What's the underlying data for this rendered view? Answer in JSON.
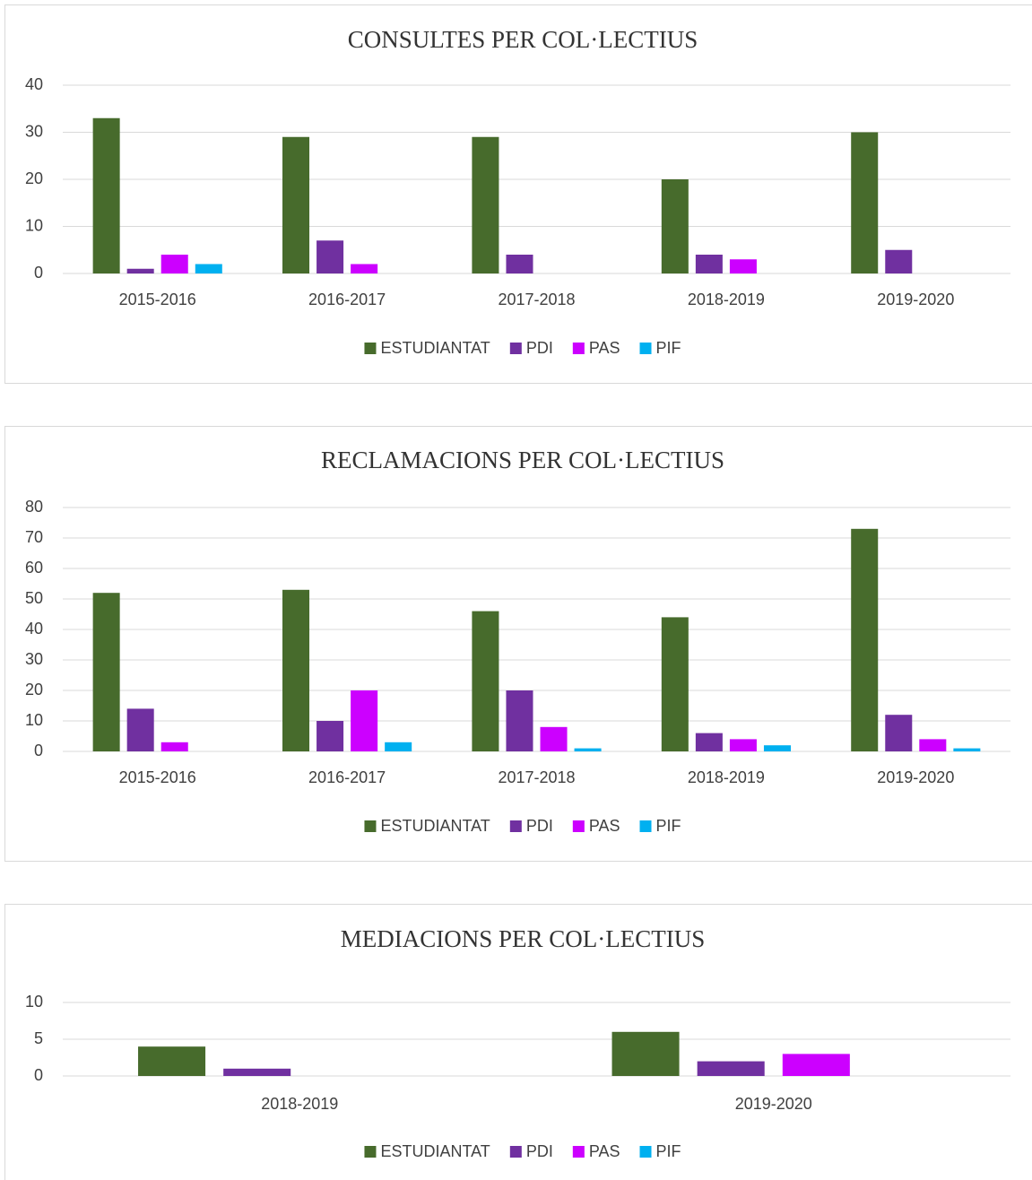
{
  "chart_data": [
    {
      "type": "bar",
      "title": "CONSULTES PER COL·LECTIUS",
      "categories": [
        "2015-2016",
        "2016-2017",
        "2017-2018",
        "2018-2019",
        "2019-2020"
      ],
      "series": [
        {
          "name": "ESTUDIANTAT",
          "color": "#476b2c",
          "values": [
            33,
            29,
            29,
            20,
            30
          ]
        },
        {
          "name": "PDI",
          "color": "#7030a0",
          "values": [
            1,
            7,
            4,
            4,
            5
          ]
        },
        {
          "name": "PAS",
          "color": "#cc00ff",
          "values": [
            4,
            2,
            0,
            3,
            0
          ]
        },
        {
          "name": "PIF",
          "color": "#00b0f0",
          "values": [
            2,
            0,
            0,
            0,
            0
          ]
        }
      ],
      "ylim": [
        0,
        40
      ],
      "yticks": [
        0,
        10,
        20,
        30,
        40
      ],
      "grid": true,
      "legend": "bottom"
    },
    {
      "type": "bar",
      "title": "RECLAMACIONS PER COL·LECTIUS",
      "categories": [
        "2015-2016",
        "2016-2017",
        "2017-2018",
        "2018-2019",
        "2019-2020"
      ],
      "series": [
        {
          "name": "ESTUDIANTAT",
          "color": "#476b2c",
          "values": [
            52,
            53,
            46,
            44,
            73
          ]
        },
        {
          "name": "PDI",
          "color": "#7030a0",
          "values": [
            14,
            10,
            20,
            6,
            12
          ]
        },
        {
          "name": "PAS",
          "color": "#cc00ff",
          "values": [
            3,
            20,
            8,
            4,
            4
          ]
        },
        {
          "name": "PIF",
          "color": "#00b0f0",
          "values": [
            0,
            3,
            1,
            2,
            1
          ]
        }
      ],
      "ylim": [
        0,
        80
      ],
      "yticks": [
        0,
        10,
        20,
        30,
        40,
        50,
        60,
        70,
        80
      ],
      "grid": true,
      "legend": "bottom"
    },
    {
      "type": "bar",
      "title": "MEDIACIONS PER COL·LECTIUS",
      "categories": [
        "2018-2019",
        "2019-2020"
      ],
      "series": [
        {
          "name": "ESTUDIANTAT",
          "color": "#476b2c",
          "values": [
            4,
            6
          ]
        },
        {
          "name": "PDI",
          "color": "#7030a0",
          "values": [
            1,
            2
          ]
        },
        {
          "name": "PAS",
          "color": "#cc00ff",
          "values": [
            0,
            3
          ]
        },
        {
          "name": "PIF",
          "color": "#00b0f0",
          "values": [
            0,
            0
          ]
        }
      ],
      "ylim": [
        0,
        10
      ],
      "yticks": [
        0,
        5,
        10
      ],
      "grid": true,
      "legend": "bottom"
    }
  ]
}
